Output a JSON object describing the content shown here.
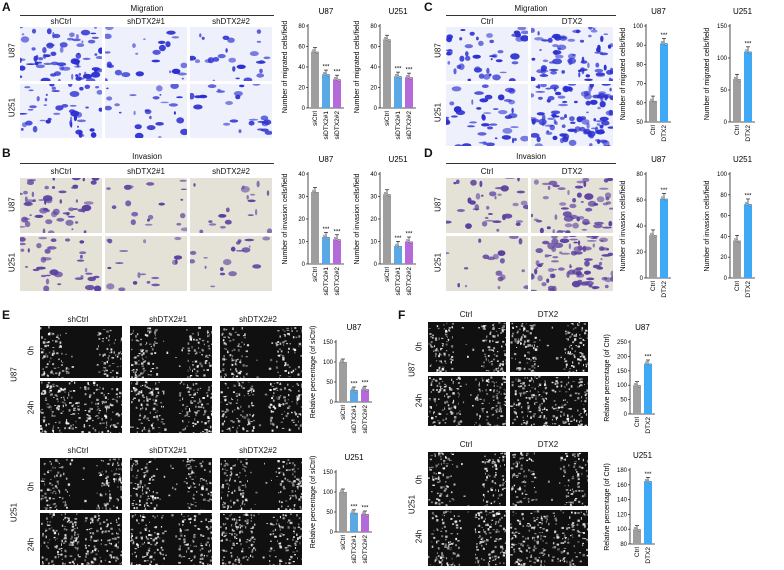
{
  "panels": {
    "A": {
      "letter": "A",
      "title": "Migration",
      "cols": [
        "shCtrl",
        "shDTX2#1",
        "shDTX2#2"
      ],
      "rows": [
        "U87",
        "U251"
      ]
    },
    "B": {
      "letter": "B",
      "title": "Invasion",
      "cols": [
        "shCtrl",
        "shDTX2#1",
        "shDTX2#2"
      ],
      "rows": [
        "U87",
        "U251"
      ]
    },
    "C": {
      "letter": "C",
      "title": "Migration",
      "cols": [
        "Ctrl",
        "DTX2"
      ],
      "rows": [
        "U87",
        "U251"
      ]
    },
    "D": {
      "letter": "D",
      "title": "Invasion",
      "cols": [
        "Ctrl",
        "DTX2"
      ],
      "rows": [
        "U87",
        "U251"
      ]
    },
    "E": {
      "letter": "E",
      "cols": [
        "shCtrl",
        "shDTX2#1",
        "shDTX2#2"
      ],
      "rows": [
        "U87",
        "U251"
      ],
      "times": [
        "0h",
        "24h"
      ]
    },
    "F": {
      "letter": "F",
      "cols": [
        "Ctrl",
        "DTX2"
      ],
      "rows": [
        "U87",
        "U251"
      ],
      "times": [
        "0h",
        "24h"
      ]
    }
  },
  "colors": {
    "migration": "#2a2fd0",
    "invasion": "#5b3fa0",
    "ctrl": "#9e9e9e",
    "kd1": "#5aa9e6",
    "kd2": "#b46ad8",
    "oe": "#3fa9f5"
  },
  "chart_data": [
    {
      "id": "A-U87",
      "type": "bar",
      "title": "U87",
      "ylabel": "Number of migrated cells/field",
      "categories": [
        "siCtrl",
        "siDTX2#1",
        "siDTX2#2"
      ],
      "values": [
        55,
        33,
        28
      ],
      "ylim": [
        0,
        80
      ],
      "yticks": [
        0,
        20,
        40,
        60,
        80
      ],
      "sig": [
        "",
        "***",
        "***"
      ]
    },
    {
      "id": "A-U251",
      "type": "bar",
      "title": "U251",
      "ylabel": "Number of migrated cells/field",
      "categories": [
        "siCtrl",
        "siDTX2#1",
        "siDTX2#2"
      ],
      "values": [
        67,
        31,
        30
      ],
      "ylim": [
        0,
        80
      ],
      "yticks": [
        0,
        20,
        40,
        60,
        80
      ],
      "sig": [
        "",
        "***",
        "***"
      ]
    },
    {
      "id": "B-U87",
      "type": "bar",
      "title": "U87",
      "ylabel": "Number of invasion cells/field",
      "categories": [
        "siCtrl",
        "siDTX2#1",
        "siDTX2#2"
      ],
      "values": [
        32,
        12,
        11
      ],
      "ylim": [
        0,
        40
      ],
      "yticks": [
        0,
        10,
        20,
        30,
        40
      ],
      "sig": [
        "",
        "***",
        "***"
      ]
    },
    {
      "id": "B-U251",
      "type": "bar",
      "title": "U251",
      "ylabel": "Number of invasion cells/field",
      "categories": [
        "siCtrl",
        "siDTX2#1",
        "siDTX2#2"
      ],
      "values": [
        31,
        8,
        10
      ],
      "ylim": [
        0,
        40
      ],
      "yticks": [
        0,
        10,
        20,
        30,
        40
      ],
      "sig": [
        "",
        "***",
        "***"
      ]
    },
    {
      "id": "C-U87",
      "type": "bar",
      "title": "U87",
      "ylabel": "Number of migrated cells/field",
      "categories": [
        "Ctrl",
        "DTX2"
      ],
      "values": [
        61,
        91
      ],
      "ylim": [
        50,
        100
      ],
      "yticks": [
        50,
        60,
        70,
        80,
        90,
        100
      ],
      "sig": [
        "",
        "***"
      ]
    },
    {
      "id": "C-U251",
      "type": "bar",
      "title": "U251",
      "ylabel": "Number of migrated cells/field",
      "categories": [
        "Ctrl",
        "DTX2"
      ],
      "values": [
        67,
        110
      ],
      "ylim": [
        0,
        150
      ],
      "yticks": [
        0,
        50,
        100,
        150
      ],
      "sig": [
        "",
        "***"
      ]
    },
    {
      "id": "D-U87",
      "type": "bar",
      "title": "U87",
      "ylabel": "Number of invasion cells/field",
      "categories": [
        "Ctrl",
        "DTX2"
      ],
      "values": [
        33,
        61
      ],
      "ylim": [
        0,
        80
      ],
      "yticks": [
        0,
        20,
        40,
        60,
        80
      ],
      "sig": [
        "",
        "***"
      ]
    },
    {
      "id": "D-U251",
      "type": "bar",
      "title": "U251",
      "ylabel": "Number of invasion cells/field",
      "categories": [
        "Ctrl",
        "DTX2"
      ],
      "values": [
        36,
        71
      ],
      "ylim": [
        0,
        100
      ],
      "yticks": [
        0,
        20,
        40,
        60,
        80,
        100
      ],
      "sig": [
        "",
        "***"
      ]
    },
    {
      "id": "E-U87",
      "type": "bar",
      "title": "U87",
      "ylabel": "Relative percentage (of siCtrl)",
      "categories": [
        "siCtrl",
        "siDTX2#1",
        "siDTX2#2"
      ],
      "values": [
        100,
        30,
        32
      ],
      "ylim": [
        0,
        150
      ],
      "yticks": [
        0,
        50,
        100,
        150
      ],
      "sig": [
        "",
        "***",
        "***"
      ]
    },
    {
      "id": "E-U251",
      "type": "bar",
      "title": "U251",
      "ylabel": "Relative percentage (of siCtrl)",
      "categories": [
        "siCtrl",
        "siDTX2#1",
        "siDTX2#2"
      ],
      "values": [
        100,
        48,
        45
      ],
      "ylim": [
        0,
        150
      ],
      "yticks": [
        0,
        50,
        100,
        150
      ],
      "sig": [
        "",
        "***",
        "***"
      ]
    },
    {
      "id": "F-U87",
      "type": "bar",
      "title": "U87",
      "ylabel": "Relative percentage (of Ctrl)",
      "categories": [
        "Ctrl",
        "DTX2"
      ],
      "values": [
        100,
        175
      ],
      "ylim": [
        0,
        250
      ],
      "yticks": [
        0,
        50,
        100,
        150,
        200,
        250
      ],
      "sig": [
        "",
        "***"
      ]
    },
    {
      "id": "F-U251",
      "type": "bar",
      "title": "U251",
      "ylabel": "Relative percentage (of Ctrl)",
      "categories": [
        "Ctrl",
        "DTX2"
      ],
      "values": [
        100,
        165
      ],
      "ylim": [
        80,
        180
      ],
      "yticks": [
        80,
        100,
        120,
        140,
        160,
        180
      ],
      "sig": [
        "",
        "***"
      ]
    }
  ]
}
